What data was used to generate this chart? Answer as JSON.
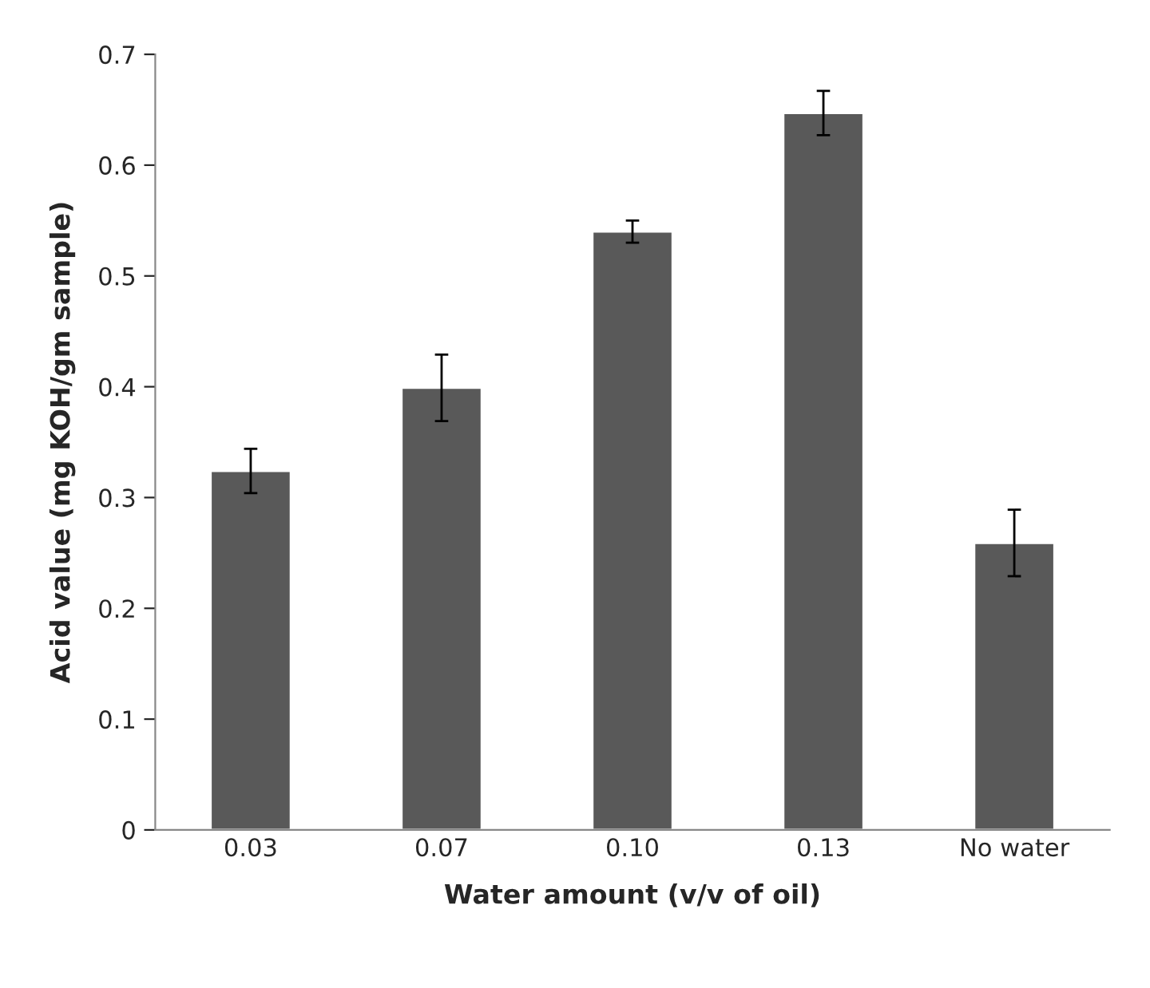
{
  "chart_data": {
    "type": "bar",
    "xlabel": "Water amount (v/v of oil)",
    "ylabel": "Acid value (mg KOH/gm sample)",
    "categories": [
      "0.03",
      "0.07",
      "0.10",
      "0.13",
      "No water"
    ],
    "values": [
      0.324,
      0.399,
      0.54,
      0.647,
      0.259
    ],
    "errors": [
      0.02,
      0.03,
      0.01,
      0.02,
      0.03
    ],
    "color": "#595959",
    "ylim": [
      0,
      0.7
    ],
    "yticks": [
      {
        "value": 0,
        "label": "0"
      },
      0.1,
      0.2,
      0.3,
      0.4,
      0.5,
      0.6,
      0.7
    ],
    "grid": false
  }
}
